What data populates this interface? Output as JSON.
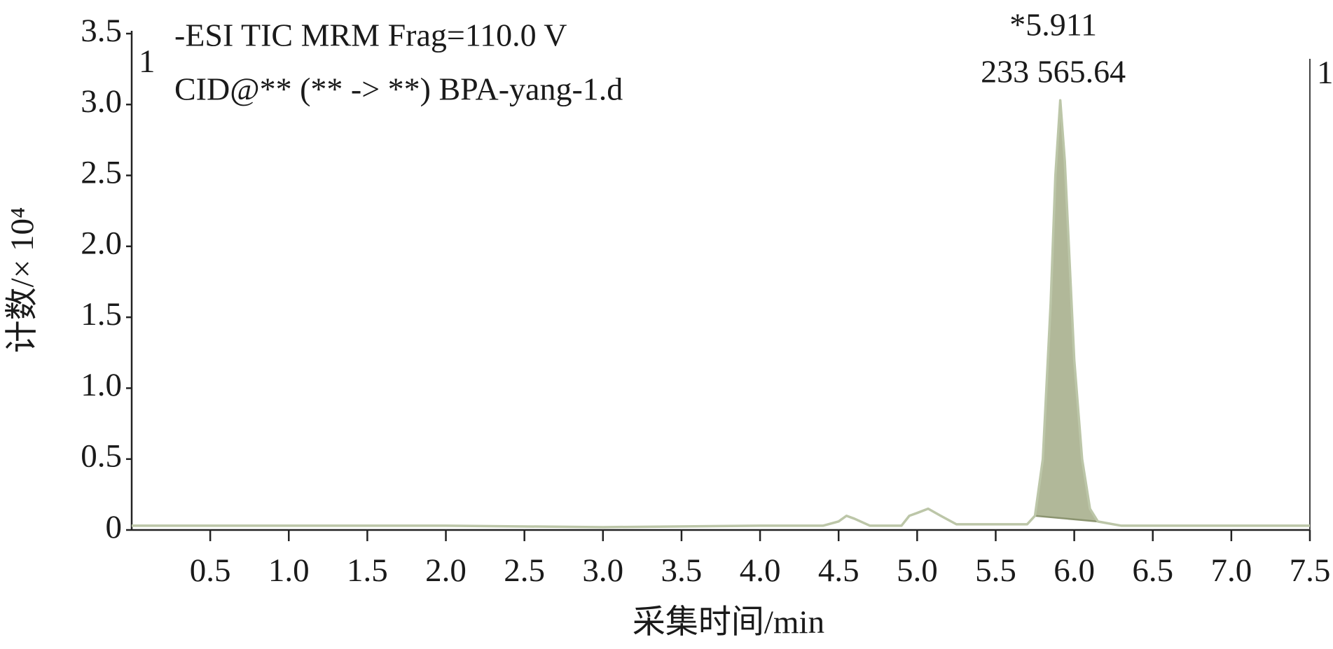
{
  "chart_data": {
    "type": "line",
    "title_lines": [
      "-ESI TIC MRM Frag=110.0 V",
      "CID@** (** -> **) BPA-yang-1.d"
    ],
    "segment_labels": [
      "1",
      "1"
    ],
    "peak_annotation": {
      "x": 5.911,
      "lines": [
        "*5.911",
        "233 565.64"
      ]
    },
    "xlabel": "采集时间/min",
    "ylabel": "计数/× 10⁴",
    "x": [
      0,
      1,
      2,
      3,
      4,
      4.4,
      4.5,
      4.55,
      4.6,
      4.7,
      4.9,
      4.95,
      5.0,
      5.07,
      5.15,
      5.25,
      5.7,
      5.75,
      5.8,
      5.85,
      5.88,
      5.911,
      5.94,
      5.97,
      6.0,
      6.05,
      6.1,
      6.15,
      6.3,
      7.0,
      7.5
    ],
    "values": [
      0.03,
      0.03,
      0.03,
      0.02,
      0.03,
      0.03,
      0.06,
      0.1,
      0.08,
      0.03,
      0.03,
      0.1,
      0.12,
      0.15,
      0.1,
      0.04,
      0.04,
      0.1,
      0.5,
      1.6,
      2.5,
      3.03,
      2.6,
      1.9,
      1.2,
      0.5,
      0.15,
      0.06,
      0.03,
      0.03,
      0.03
    ],
    "color": "#bcc6a8",
    "shaded_peak": {
      "start": 5.75,
      "end": 6.15,
      "color": "#a3ab87",
      "edge_color": "#8b9470"
    },
    "xlim": [
      0,
      7.5
    ],
    "xticks": [
      0.5,
      {
        "value": 1,
        "label": "1.0"
      },
      1.5,
      {
        "value": 2,
        "label": "2.0"
      },
      2.5,
      {
        "value": 3,
        "label": "3.0"
      },
      3.5,
      {
        "value": 4,
        "label": "4.0"
      },
      4.5,
      {
        "value": 5,
        "label": "5.0"
      },
      5.5,
      {
        "value": 6,
        "label": "6.0"
      },
      6.5,
      {
        "value": 7,
        "label": "7.0"
      },
      7.5
    ],
    "ylim": [
      0,
      3.5
    ],
    "yticks": [
      0,
      0.5,
      {
        "value": 1,
        "label": "1.0"
      },
      1.5,
      {
        "value": 2,
        "label": "2.0"
      },
      2.5,
      {
        "value": 3,
        "label": "3.0"
      },
      3.5
    ]
  }
}
